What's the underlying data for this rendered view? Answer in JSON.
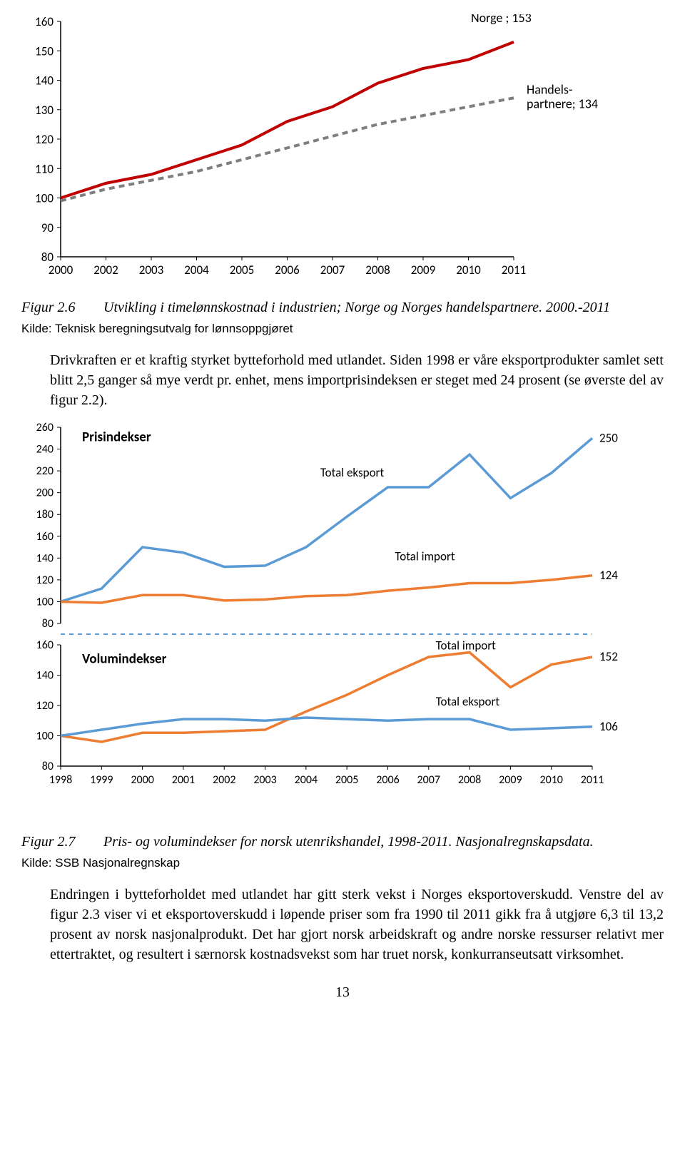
{
  "chart1": {
    "type": "line",
    "ylim": [
      80,
      160
    ],
    "ytick_step": 10,
    "yticks": [
      80,
      90,
      100,
      110,
      120,
      130,
      140,
      150,
      160
    ],
    "xcats": [
      "2000",
      "2002",
      "2003",
      "2004",
      "2005",
      "2006",
      "2007",
      "2008",
      "2009",
      "2010",
      "2011"
    ],
    "background_color": "#ffffff",
    "axis_color": "#000000",
    "tick_fontsize": 17,
    "series": [
      {
        "name": "Norge",
        "color": "#c00000",
        "width": 4,
        "dash": "",
        "values": [
          100,
          105,
          108,
          113,
          118,
          126,
          131,
          139,
          144,
          147,
          153
        ],
        "end_label": "Norge ; 153"
      },
      {
        "name": "Handelspartnere",
        "color": "#7f7f7f",
        "width": 4,
        "dash": "8 6",
        "values": [
          99,
          103,
          106,
          109,
          113,
          117,
          121,
          125,
          128,
          131,
          134
        ],
        "end_label": "Handels-\npartnere; 134"
      }
    ]
  },
  "caption1": {
    "fignum": "Figur 2.6",
    "text": "Utvikling i timelønnskostnad i industrien; Norge og Norges handelspartnere. 2000.-2011"
  },
  "kilde1": "Kilde: Teknisk beregningsutvalg for lønnsoppgjøret",
  "para1": "Drivkraften er et kraftig styrket bytteforhold med utlandet. Siden 1998 er våre eksportprodukter samlet sett blitt 2,5 ganger så mye verdt pr. enhet, mens importprisindeksen er steget med 24 prosent (se øverste del av figur 2.2).",
  "chart2": {
    "type": "line-multi",
    "xcats": [
      "1998",
      "1999",
      "2000",
      "2001",
      "2002",
      "2003",
      "2004",
      "2005",
      "2006",
      "2007",
      "2008",
      "2009",
      "2010",
      "2011"
    ],
    "tick_fontsize": 16,
    "axis_color": "#000000",
    "background_color": "#ffffff",
    "panels": [
      {
        "title": "Prisindekser",
        "ylim": [
          80,
          260
        ],
        "ytick_step": 20,
        "yticks": [
          80,
          100,
          120,
          140,
          160,
          180,
          200,
          220,
          240,
          260
        ],
        "series": [
          {
            "name": "Total eksport",
            "color": "#5b9bd5",
            "width": 3.5,
            "values": [
              100,
              112,
              150,
              145,
              132,
              133,
              150,
              178,
              205,
              205,
              235,
              195,
              218,
              250
            ],
            "label": "Total eksport",
            "end_value_label": "250"
          },
          {
            "name": "Total import",
            "color": "#ed7d31",
            "width": 3.5,
            "values": [
              100,
              99,
              106,
              106,
              101,
              102,
              105,
              106,
              110,
              113,
              117,
              117,
              120,
              124
            ],
            "label": "Total import",
            "end_value_label": "124"
          }
        ]
      },
      {
        "title": "Volumindekser",
        "ylim": [
          80,
          160
        ],
        "ytick_step": 20,
        "yticks": [
          80,
          100,
          120,
          140,
          160
        ],
        "series": [
          {
            "name": "Total import",
            "color": "#ed7d31",
            "width": 3.5,
            "values": [
              100,
              96,
              102,
              102,
              103,
              104,
              116,
              127,
              140,
              152,
              155,
              132,
              147,
              152
            ],
            "label": "Total import",
            "end_value_label": "152"
          },
          {
            "name": "Total eksport",
            "color": "#5b9bd5",
            "width": 3.5,
            "values": [
              100,
              104,
              108,
              111,
              111,
              110,
              112,
              111,
              110,
              111,
              111,
              104,
              105,
              106
            ],
            "label": "Total eksport",
            "end_value_label": "106"
          }
        ]
      }
    ],
    "divider_color": "#5b9bd5",
    "divider_dash": "6 6"
  },
  "caption2": {
    "fignum": "Figur 2.7",
    "text": "Pris- og volumindekser for norsk utenrikshandel, 1998-2011. Nasjonalregnskapsdata."
  },
  "kilde2": "Kilde: SSB Nasjonalregnskap",
  "para2": "Endringen i bytteforholdet med utlandet har gitt sterk vekst i Norges eksportoverskudd. Venstre del av figur 2.3 viser vi et eksportoverskudd i løpende priser som fra 1990 til 2011 gikk fra å utgjøre 6,3 til 13,2 prosent av norsk nasjonalprodukt. Det har gjort norsk arbeidskraft og andre norske ressurser relativt mer ettertraktet, og resultert i særnorsk kostnadsvekst som har truet norsk, konkurranseutsatt virksomhet.",
  "pagenum": "13"
}
